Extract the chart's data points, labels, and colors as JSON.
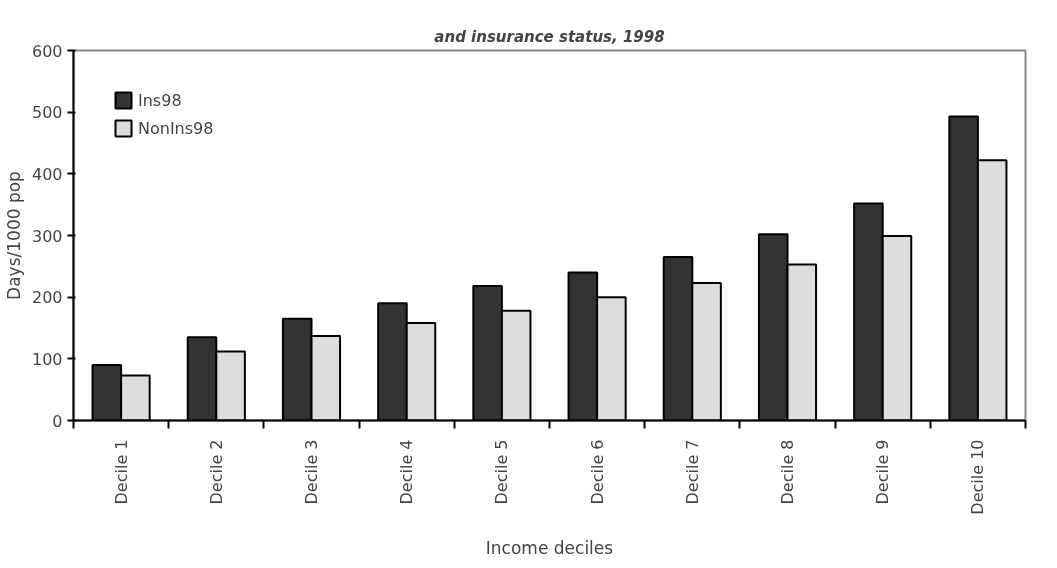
{
  "chart_data": {
    "type": "bar",
    "title": "and insurance status, 1998",
    "xlabel": "Income deciles",
    "ylabel": "Days/1000 pop",
    "categories": [
      "Decile 1",
      "Decile 2",
      "Decile 3",
      "Decile 4",
      "Decile 5",
      "Decile 6",
      "Decile 7",
      "Decile 8",
      "Decile 9",
      "Decile 10"
    ],
    "series": [
      {
        "name": "Ins98",
        "color": "#333333",
        "values": [
          90,
          135,
          165,
          190,
          218,
          240,
          265,
          302,
          352,
          493
        ]
      },
      {
        "name": "NonIns98",
        "color": "#dddddd",
        "values": [
          73,
          112,
          137,
          158,
          178,
          200,
          223,
          253,
          299,
          422
        ]
      }
    ],
    "ylim": [
      0,
      600
    ],
    "yticks": [
      0,
      100,
      200,
      300,
      400,
      500,
      600
    ],
    "grid": false,
    "legend": "top left"
  }
}
